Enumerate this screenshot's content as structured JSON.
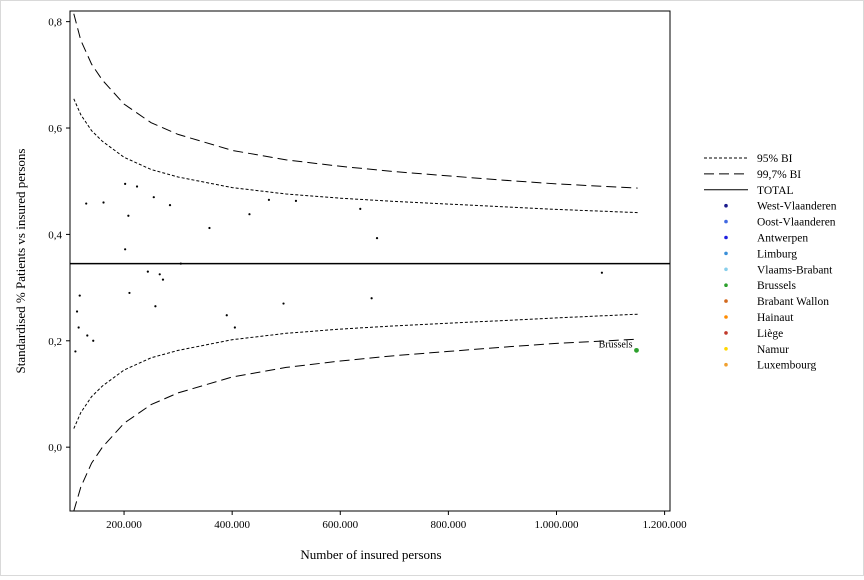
{
  "chart_data": {
    "type": "scatter",
    "xlabel": "Number of insured persons",
    "ylabel": "Standardised % Patients vs insured persons",
    "xlim": [
      100000,
      1210000
    ],
    "ylim": [
      -0.12,
      0.82
    ],
    "x_ticks": [
      {
        "value": 200000,
        "label": "200.000"
      },
      {
        "value": 400000,
        "label": "400.000"
      },
      {
        "value": 600000,
        "label": "600.000"
      },
      {
        "value": 800000,
        "label": "800.000"
      },
      {
        "value": 1000000,
        "label": "1.000.000"
      },
      {
        "value": 1200000,
        "label": "1.200.000"
      }
    ],
    "y_ticks": [
      {
        "value": 0.0,
        "label": "0,0"
      },
      {
        "value": 0.2,
        "label": "0,2"
      },
      {
        "value": 0.4,
        "label": "0,4"
      },
      {
        "value": 0.6,
        "label": "0,6"
      },
      {
        "value": 0.8,
        "label": "0,8"
      }
    ],
    "total": 0.345,
    "bands": {
      "x": [
        107000,
        120000,
        140000,
        160000,
        200000,
        250000,
        300000,
        400000,
        500000,
        600000,
        700000,
        800000,
        900000,
        1000000,
        1150000
      ],
      "bi95_upper": [
        0.655,
        0.625,
        0.595,
        0.575,
        0.545,
        0.522,
        0.508,
        0.488,
        0.476,
        0.468,
        0.462,
        0.457,
        0.452,
        0.447,
        0.441
      ],
      "bi95_lower": [
        0.035,
        0.065,
        0.095,
        0.115,
        0.145,
        0.168,
        0.182,
        0.202,
        0.214,
        0.222,
        0.228,
        0.233,
        0.238,
        0.243,
        0.25
      ],
      "bi997_upper": [
        0.815,
        0.765,
        0.72,
        0.69,
        0.645,
        0.61,
        0.588,
        0.558,
        0.54,
        0.528,
        0.518,
        0.51,
        0.502,
        0.495,
        0.487
      ],
      "bi997_lower": [
        -0.12,
        -0.075,
        -0.03,
        0.0,
        0.045,
        0.08,
        0.102,
        0.132,
        0.15,
        0.162,
        0.172,
        0.18,
        0.188,
        0.195,
        0.203
      ]
    },
    "points": [
      {
        "x": 110000,
        "y": 0.18
      },
      {
        "x": 113000,
        "y": 0.255
      },
      {
        "x": 116000,
        "y": 0.225
      },
      {
        "x": 118000,
        "y": 0.285
      },
      {
        "x": 130000,
        "y": 0.458
      },
      {
        "x": 132000,
        "y": 0.21
      },
      {
        "x": 143000,
        "y": 0.2
      },
      {
        "x": 162000,
        "y": 0.46
      },
      {
        "x": 202000,
        "y": 0.495
      },
      {
        "x": 202000,
        "y": 0.372
      },
      {
        "x": 208000,
        "y": 0.435
      },
      {
        "x": 210000,
        "y": 0.29
      },
      {
        "x": 224000,
        "y": 0.49
      },
      {
        "x": 244000,
        "y": 0.33
      },
      {
        "x": 255000,
        "y": 0.47
      },
      {
        "x": 258000,
        "y": 0.265
      },
      {
        "x": 266000,
        "y": 0.325
      },
      {
        "x": 272000,
        "y": 0.315
      },
      {
        "x": 285000,
        "y": 0.455
      },
      {
        "x": 305000,
        "y": 0.345
      },
      {
        "x": 358000,
        "y": 0.412
      },
      {
        "x": 390000,
        "y": 0.248
      },
      {
        "x": 405000,
        "y": 0.225
      },
      {
        "x": 432000,
        "y": 0.438
      },
      {
        "x": 468000,
        "y": 0.465
      },
      {
        "x": 495000,
        "y": 0.27
      },
      {
        "x": 518000,
        "y": 0.463
      },
      {
        "x": 637000,
        "y": 0.448
      },
      {
        "x": 658000,
        "y": 0.28
      },
      {
        "x": 668000,
        "y": 0.393
      },
      {
        "x": 1084000,
        "y": 0.328
      }
    ],
    "highlight": {
      "x": 1148000,
      "y": 0.182,
      "label": "Brussels",
      "color": "#2ca02c"
    },
    "legend_position": "right",
    "legend": [
      {
        "label": "95% BI",
        "kind": "line",
        "dash": "short"
      },
      {
        "label": "99,7% BI",
        "kind": "line",
        "dash": "long"
      },
      {
        "label": "TOTAL",
        "kind": "line",
        "dash": "solid"
      },
      {
        "label": "West-Vlaanderen",
        "kind": "dot",
        "color": "#1a1a8c"
      },
      {
        "label": "Oost-Vlaanderen",
        "kind": "dot",
        "color": "#4169e1"
      },
      {
        "label": "Antwerpen",
        "kind": "dot",
        "color": "#1f1fe0"
      },
      {
        "label": "Limburg",
        "kind": "dot",
        "color": "#3a8fd8"
      },
      {
        "label": "Vlaams-Brabant",
        "kind": "dot",
        "color": "#87ceeb"
      },
      {
        "label": "Brussels",
        "kind": "dot",
        "color": "#2ca02c"
      },
      {
        "label": "Brabant Wallon",
        "kind": "dot",
        "color": "#d2691e"
      },
      {
        "label": "Hainaut",
        "kind": "dot",
        "color": "#ff8c00"
      },
      {
        "label": "Liège",
        "kind": "dot",
        "color": "#c0392b"
      },
      {
        "label": "Namur",
        "kind": "dot",
        "color": "#ffd700"
      },
      {
        "label": "Luxembourg",
        "kind": "dot",
        "color": "#f0a030"
      }
    ]
  }
}
